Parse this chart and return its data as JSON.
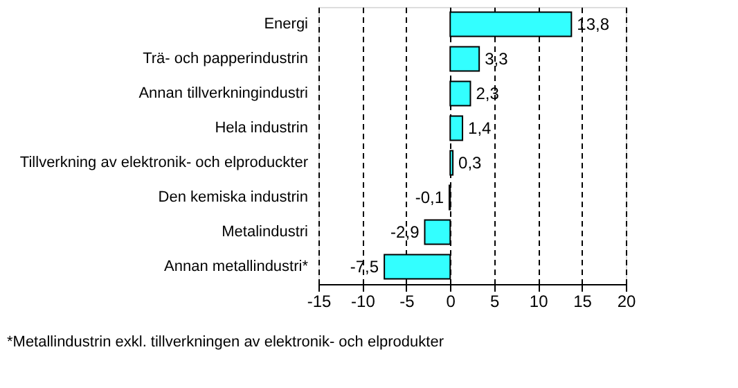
{
  "chart_data": {
    "type": "bar",
    "orientation": "horizontal",
    "categories": [
      "Energi",
      "Trä- och papperindustrin",
      "Annan tillverkningindustri",
      "Hela industrin",
      "Tillverkning av elektronik- och elproduckter",
      "Den kemiska industrin",
      "Metalindustri",
      "Annan metallindustri*"
    ],
    "values": [
      13.8,
      3.3,
      2.3,
      1.4,
      0.3,
      -0.1,
      -2.9,
      -7.5
    ],
    "value_labels": [
      "13,8",
      "3,3",
      "2,3",
      "1,4",
      "0,3",
      "-0,1",
      "-2,9",
      "-7,5"
    ],
    "color": "#33ffff",
    "xlim": [
      -15,
      20
    ],
    "xticks": [
      -15,
      -10,
      -5,
      0,
      5,
      10,
      15,
      20
    ],
    "grid": "x",
    "annotations": [
      "*Metallindustrin exkl. tillverkningen av elektronik- och elprodukter"
    ]
  }
}
